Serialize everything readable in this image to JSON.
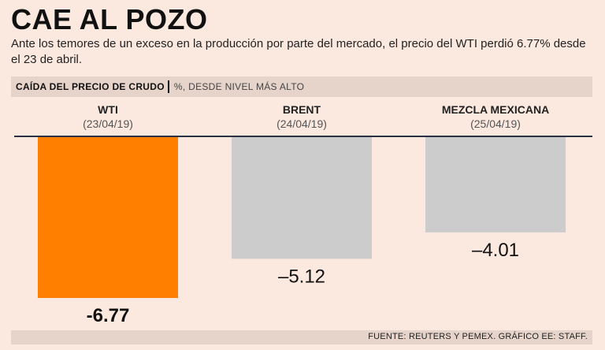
{
  "title": "CAE AL POZO",
  "subtitle": "Ante los temores de un exceso en la producción por parte del mercado, el precio del WTI perdió 6.77% desde el 23 de abril.",
  "header": {
    "label": "CAÍDA DEL PRECIO DE CRUDO",
    "unit": "%, DESDE NIVEL MÁS ALTO"
  },
  "footer": "FUENTE: REUTERS Y PEMEX. GRÁFICO EE: STAFF.",
  "colors": {
    "highlight": "#ff8000",
    "default": "#cccccc",
    "background": "#fbe8df"
  },
  "chart_data": {
    "type": "bar",
    "title": "CAÍDA DEL PRECIO DE CRUDO",
    "ylabel": "%, DESDE NIVEL MÁS ALTO",
    "categories": [
      "WTI",
      "BRENT",
      "MEZCLA MEXICANA"
    ],
    "dates": [
      "(23/04/19)",
      "(24/04/19)",
      "(25/04/19)"
    ],
    "values": [
      -6.77,
      -5.12,
      -4.01
    ],
    "value_labels": [
      "-6.77",
      "–5.12",
      "–4.01"
    ],
    "highlight": [
      true,
      false,
      false
    ],
    "ylim": [
      -6.77,
      0
    ]
  }
}
